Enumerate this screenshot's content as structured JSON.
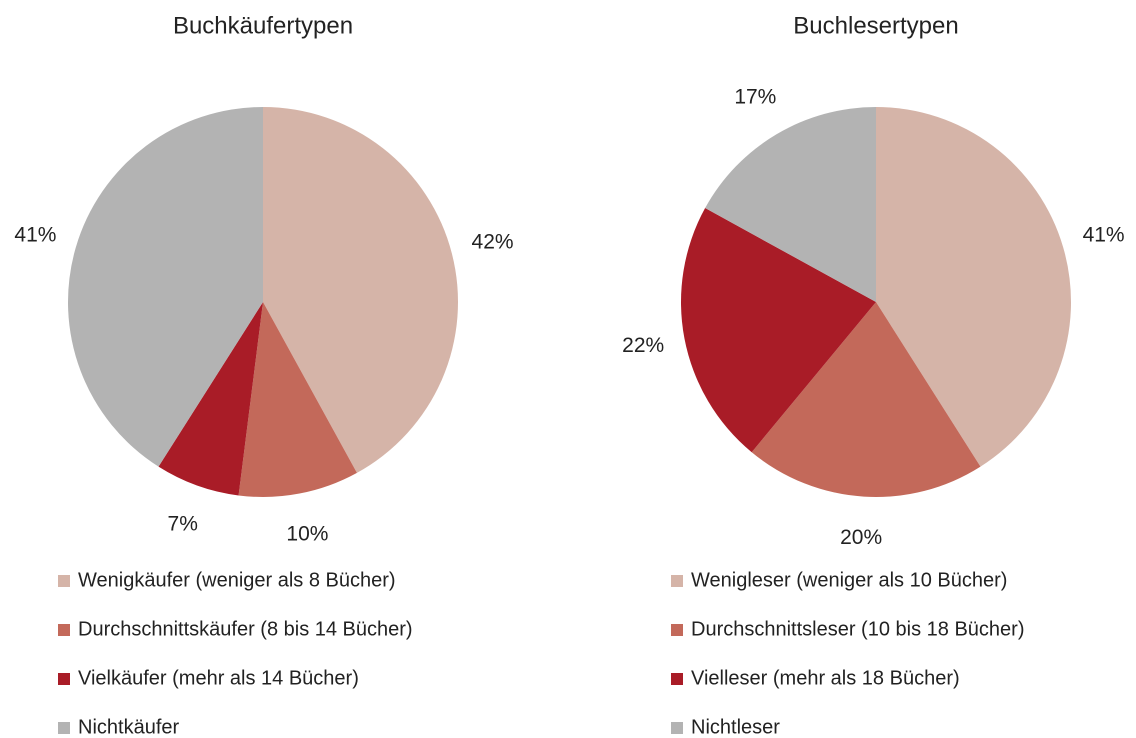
{
  "chart_data": [
    {
      "type": "pie",
      "title": "Buchkäufertypen",
      "categories": [
        "Wenigkäufer (weniger als 8 Bücher)",
        "Durchschnittskäufer (8 bis 14 Bücher)",
        "Vielkäufer (mehr als 14 Bücher)",
        "Nichtkäufer"
      ],
      "values": [
        42,
        10,
        7,
        41
      ],
      "value_labels": [
        "42%",
        "10%",
        "7%",
        "41%"
      ],
      "colors": [
        "#d5b4a8",
        "#c3695a",
        "#a91c27",
        "#b3b3b3"
      ]
    },
    {
      "type": "pie",
      "title": "Buchlesertypen",
      "categories": [
        "Wenigleser (weniger als 10 Bücher)",
        "Durchschnittsleser (10 bis 18 Bücher)",
        "Vielleser (mehr als 18 Bücher)",
        "Nichtleser"
      ],
      "values": [
        41,
        20,
        22,
        17
      ],
      "value_labels": [
        "41%",
        "20%",
        "22%",
        "17%"
      ],
      "colors": [
        "#d5b4a8",
        "#c3695a",
        "#a91c27",
        "#b3b3b3"
      ]
    }
  ]
}
